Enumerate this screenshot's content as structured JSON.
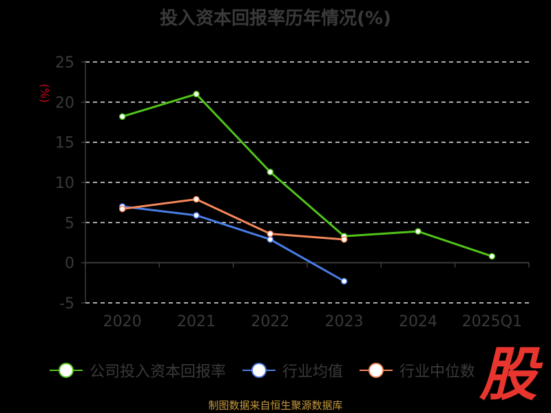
{
  "chart_data": {
    "type": "line",
    "title": "投入资本回报率历年情况(%)",
    "ylabel": "(%)",
    "categories": [
      "2020",
      "2021",
      "2022",
      "2023",
      "2024",
      "2025Q1"
    ],
    "ylim": [
      -5,
      25
    ],
    "yticks": [
      25,
      20,
      15,
      10,
      5,
      0,
      -5
    ],
    "grid": true,
    "legend_position": "bottom",
    "series": [
      {
        "name": "公司投入资本回报率",
        "color": "#52c41a",
        "values": [
          18.2,
          21.0,
          11.3,
          3.3,
          3.9,
          0.8
        ]
      },
      {
        "name": "行业均值",
        "color": "#4a7ee8",
        "values": [
          7.0,
          5.9,
          2.9,
          -2.3,
          null,
          null
        ]
      },
      {
        "name": "行业中位数",
        "color": "#f5875a",
        "values": [
          6.7,
          7.9,
          3.6,
          2.9,
          null,
          null
        ]
      }
    ]
  },
  "logo_text": "股",
  "source": "制图数据来自恒生聚源数据库",
  "colors": {
    "background": "#000000",
    "axis": "#3c3c3c",
    "grid": "#e8e8e8",
    "text": "#3a3a3a"
  }
}
